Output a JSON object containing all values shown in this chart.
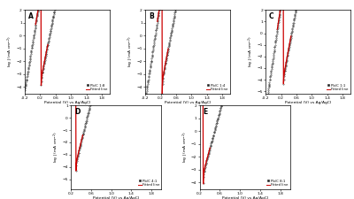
{
  "panels": [
    {
      "label": "A",
      "legend": "Pb/C 1:8"
    },
    {
      "label": "B",
      "legend": "Pb/C 1:4"
    },
    {
      "label": "C",
      "legend": "Pb/C 1:1"
    },
    {
      "label": "D",
      "legend": "Pb/C 4:1"
    },
    {
      "label": "E",
      "legend": "Pb/C 8:1"
    }
  ],
  "xlabel": "Potential (V) vs Ag/AgCl",
  "ylabel": "log J (mA cm$^{-2}$)",
  "black_color": "#222222",
  "red_color": "#cc0000",
  "background": "#ffffff"
}
